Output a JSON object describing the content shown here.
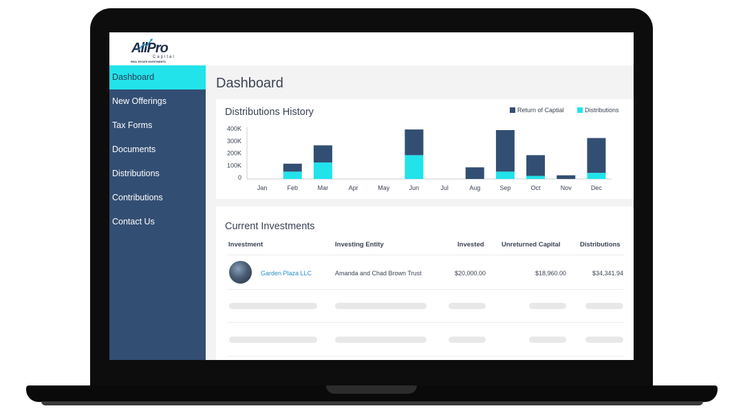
{
  "logo": {
    "text_main": "AllPro",
    "text_sub": "Capital",
    "tagline": "REAL ESTATE INVESTMENTS"
  },
  "sidebar": {
    "items": [
      {
        "label": "Dashboard",
        "active": true
      },
      {
        "label": "New Offerings",
        "active": false
      },
      {
        "label": "Tax Forms",
        "active": false
      },
      {
        "label": "Documents",
        "active": false
      },
      {
        "label": "Distributions",
        "active": false
      },
      {
        "label": "Contributions",
        "active": false
      },
      {
        "label": "Contact Us",
        "active": false
      }
    ]
  },
  "page_title": "Dashboard",
  "distributions_card": {
    "title": "Distributions History",
    "legend": {
      "return_label": "Return of Captial",
      "dist_label": "Distributions"
    }
  },
  "colors": {
    "return_of_capital": "#334e73",
    "distributions": "#22e3ea",
    "sidebar": "#334e73",
    "link": "#2a8fc9"
  },
  "chart_data": {
    "type": "bar",
    "stacked": true,
    "title": "Distributions History",
    "categories": [
      "Jan",
      "Feb",
      "Mar",
      "Apr",
      "May",
      "Jun",
      "Jul",
      "Aug",
      "Sep",
      "Oct",
      "Nov",
      "Dec"
    ],
    "series": [
      {
        "name": "Distributions",
        "values": [
          0,
          60000,
          135000,
          0,
          0,
          195000,
          0,
          0,
          60000,
          25000,
          0,
          50000
        ]
      },
      {
        "name": "Return of Captial",
        "values": [
          0,
          65000,
          140000,
          0,
          0,
          210000,
          0,
          95000,
          340000,
          170000,
          30000,
          285000
        ]
      }
    ],
    "y_ticks": [
      "0",
      "100K",
      "200K",
      "300K",
      "400K"
    ],
    "ylim": [
      0,
      400000
    ],
    "legend_position": "top-right",
    "grid": false
  },
  "investments_card": {
    "title": "Current Investments",
    "columns": [
      "Investment",
      "Investing Entity",
      "Invested",
      "Unreturned Capital",
      "Distributions"
    ],
    "rows": [
      {
        "investment": "Garden Plaza LLC",
        "entity": "Amanda and Chad Brown Trust",
        "invested": "$20,000.00",
        "unreturned": "$18,960.00",
        "distributions": "$34,341.94"
      }
    ]
  }
}
